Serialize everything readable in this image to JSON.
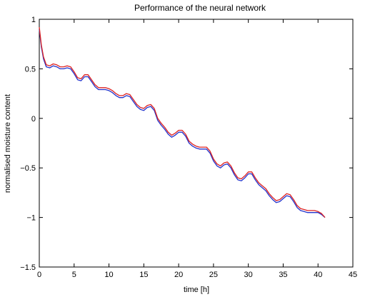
{
  "chart_data": {
    "type": "line",
    "title": "Performance of the neural network",
    "xlabel": "time [h]",
    "ylabel": "normalised moisture content",
    "xlim": [
      0,
      45
    ],
    "ylim": [
      -1.5,
      1
    ],
    "x_ticks": [
      0,
      5,
      10,
      15,
      20,
      25,
      30,
      35,
      40,
      45
    ],
    "y_ticks": [
      -1.5,
      -1,
      -0.5,
      0,
      0.5,
      1
    ],
    "x_tick_labels": [
      "0",
      "5",
      "10",
      "15",
      "20",
      "25",
      "30",
      "35",
      "40",
      "45"
    ],
    "y_tick_labels": [
      "−1.5",
      "−1",
      "−0.5",
      "0",
      "0.5",
      "1"
    ],
    "grid": false,
    "legend": "none",
    "series": [
      {
        "color": "#2233cc",
        "x": [
          0,
          0.3,
          0.6,
          1,
          1.5,
          2,
          2.5,
          3,
          3.5,
          4,
          4.5,
          5,
          5.5,
          6,
          6.5,
          7,
          7.5,
          8,
          8.5,
          9,
          9.5,
          10,
          10.5,
          11,
          11.5,
          12,
          12.5,
          13,
          13.5,
          14,
          14.5,
          15,
          15.5,
          16,
          16.5,
          17,
          17.5,
          18,
          18.5,
          19,
          19.5,
          20,
          20.5,
          21,
          21.5,
          22,
          22.5,
          23,
          23.5,
          24,
          24.5,
          25,
          25.5,
          26,
          26.5,
          27,
          27.5,
          28,
          28.5,
          29,
          29.5,
          30,
          30.5,
          31,
          31.5,
          32,
          32.5,
          33,
          33.5,
          34,
          34.5,
          35,
          35.5,
          36,
          36.5,
          37,
          37.5,
          38,
          38.5,
          39,
          39.5,
          40,
          40.5,
          41
        ],
        "y": [
          0.9,
          0.72,
          0.6,
          0.52,
          0.51,
          0.53,
          0.52,
          0.5,
          0.5,
          0.51,
          0.5,
          0.45,
          0.39,
          0.38,
          0.42,
          0.42,
          0.37,
          0.32,
          0.29,
          0.29,
          0.29,
          0.28,
          0.26,
          0.23,
          0.21,
          0.21,
          0.23,
          0.22,
          0.17,
          0.12,
          0.09,
          0.08,
          0.11,
          0.12,
          0.08,
          -0.02,
          -0.07,
          -0.11,
          -0.16,
          -0.19,
          -0.17,
          -0.14,
          -0.14,
          -0.18,
          -0.25,
          -0.28,
          -0.3,
          -0.31,
          -0.31,
          -0.31,
          -0.35,
          -0.43,
          -0.48,
          -0.5,
          -0.47,
          -0.46,
          -0.5,
          -0.57,
          -0.62,
          -0.63,
          -0.6,
          -0.56,
          -0.56,
          -0.62,
          -0.67,
          -0.7,
          -0.73,
          -0.78,
          -0.82,
          -0.85,
          -0.84,
          -0.81,
          -0.78,
          -0.79,
          -0.84,
          -0.9,
          -0.93,
          -0.94,
          -0.95,
          -0.95,
          -0.95,
          -0.95,
          -0.97,
          -1.0
        ]
      },
      {
        "color": "#dd2222",
        "x": [
          0,
          0.3,
          0.6,
          1,
          1.5,
          2,
          2.5,
          3,
          3.5,
          4,
          4.5,
          5,
          5.5,
          6,
          6.5,
          7,
          7.5,
          8,
          8.5,
          9,
          9.5,
          10,
          10.5,
          11,
          11.5,
          12,
          12.5,
          13,
          13.5,
          14,
          14.5,
          15,
          15.5,
          16,
          16.5,
          17,
          17.5,
          18,
          18.5,
          19,
          19.5,
          20,
          20.5,
          21,
          21.5,
          22,
          22.5,
          23,
          23.5,
          24,
          24.5,
          25,
          25.5,
          26,
          26.5,
          27,
          27.5,
          28,
          28.5,
          29,
          29.5,
          30,
          30.5,
          31,
          31.5,
          32,
          32.5,
          33,
          33.5,
          34,
          34.5,
          35,
          35.5,
          36,
          36.5,
          37,
          37.5,
          38,
          38.5,
          39,
          39.5,
          40,
          40.5,
          41
        ],
        "y": [
          0.92,
          0.74,
          0.62,
          0.54,
          0.53,
          0.55,
          0.54,
          0.52,
          0.52,
          0.53,
          0.52,
          0.47,
          0.41,
          0.4,
          0.44,
          0.44,
          0.39,
          0.34,
          0.31,
          0.31,
          0.31,
          0.3,
          0.28,
          0.25,
          0.23,
          0.23,
          0.25,
          0.24,
          0.19,
          0.14,
          0.11,
          0.1,
          0.13,
          0.14,
          0.1,
          0.0,
          -0.05,
          -0.09,
          -0.14,
          -0.17,
          -0.15,
          -0.12,
          -0.12,
          -0.16,
          -0.23,
          -0.26,
          -0.28,
          -0.29,
          -0.29,
          -0.29,
          -0.33,
          -0.41,
          -0.46,
          -0.48,
          -0.45,
          -0.44,
          -0.48,
          -0.55,
          -0.6,
          -0.61,
          -0.58,
          -0.54,
          -0.54,
          -0.6,
          -0.65,
          -0.68,
          -0.71,
          -0.76,
          -0.8,
          -0.83,
          -0.82,
          -0.79,
          -0.76,
          -0.77,
          -0.82,
          -0.88,
          -0.91,
          -0.92,
          -0.93,
          -0.93,
          -0.93,
          -0.94,
          -0.96,
          -1.0
        ]
      }
    ]
  }
}
